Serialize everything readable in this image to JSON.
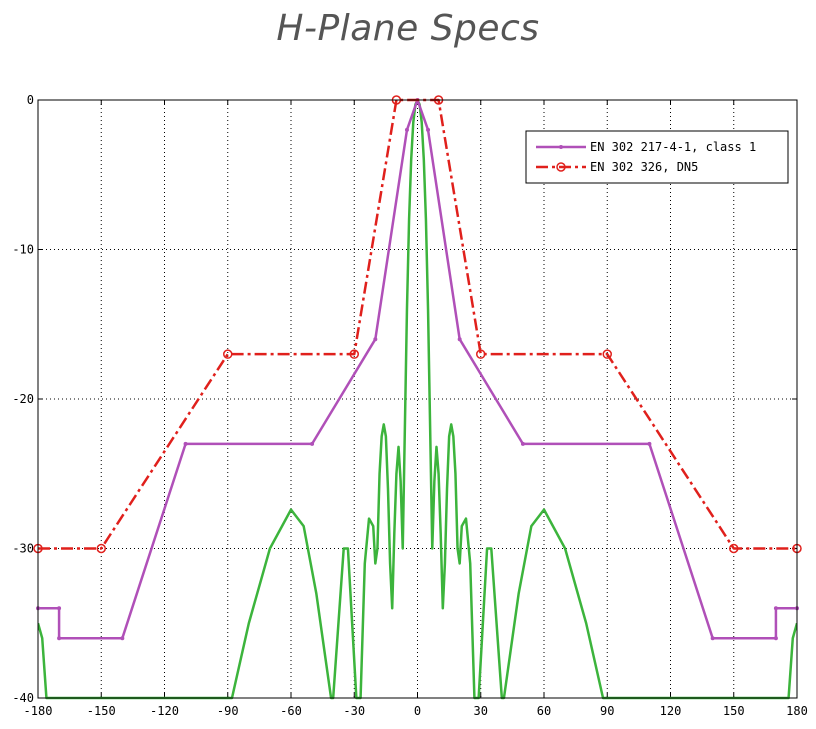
{
  "title": "H-Plane Specs",
  "chart_data": {
    "type": "line",
    "title": "H-Plane Specs",
    "xlabel": "",
    "ylabel": "",
    "xlim": [
      -180,
      180
    ],
    "ylim": [
      -40,
      0
    ],
    "xticks": [
      -180,
      -150,
      -120,
      -90,
      -60,
      -30,
      0,
      30,
      60,
      90,
      120,
      150,
      180
    ],
    "yticks": [
      0,
      -10,
      -20,
      -30,
      -40
    ],
    "grid": true,
    "legend_position": "top-right",
    "series": [
      {
        "name": "EN 302 217-4-1, class 1",
        "color": "#b050b8",
        "style": "solid",
        "marker": "dot",
        "points": [
          [
            -180,
            -34
          ],
          [
            -170,
            -34
          ],
          [
            -170,
            -36
          ],
          [
            -140,
            -36
          ],
          [
            -110,
            -23
          ],
          [
            -50,
            -23
          ],
          [
            -20,
            -16
          ],
          [
            -5,
            -2
          ],
          [
            0,
            0
          ],
          [
            5,
            -2
          ],
          [
            20,
            -16
          ],
          [
            50,
            -23
          ],
          [
            110,
            -23
          ],
          [
            140,
            -36
          ],
          [
            170,
            -36
          ],
          [
            170,
            -34
          ],
          [
            180,
            -34
          ]
        ]
      },
      {
        "name": "EN 302 326, DN5",
        "color": "#e0201c",
        "style": "dashdot",
        "marker": "circle",
        "points": [
          [
            -180,
            -30
          ],
          [
            -150,
            -30
          ],
          [
            -90,
            -17
          ],
          [
            -30,
            -17
          ],
          [
            -10,
            0
          ],
          [
            10,
            0
          ],
          [
            30,
            -17
          ],
          [
            90,
            -17
          ],
          [
            150,
            -30
          ],
          [
            180,
            -30
          ]
        ]
      },
      {
        "name": "",
        "color": "#3cb43c",
        "style": "solid",
        "marker": "none",
        "points": [
          [
            -180,
            -35
          ],
          [
            -178,
            -36
          ],
          [
            -176,
            -40
          ],
          [
            -160,
            -40
          ],
          [
            -88,
            -40
          ],
          [
            -80,
            -35
          ],
          [
            -70,
            -30
          ],
          [
            -60,
            -27.4
          ],
          [
            -54,
            -28.5
          ],
          [
            -48,
            -33
          ],
          [
            -44,
            -37
          ],
          [
            -41,
            -40
          ],
          [
            -40,
            -40
          ],
          [
            -37,
            -34
          ],
          [
            -35,
            -30
          ],
          [
            -33,
            -30
          ],
          [
            -31,
            -35
          ],
          [
            -29,
            -40
          ],
          [
            -27,
            -40
          ],
          [
            -25,
            -31
          ],
          [
            -23,
            -28
          ],
          [
            -21,
            -28.5
          ],
          [
            -20,
            -31
          ],
          [
            -19,
            -30
          ],
          [
            -18,
            -25
          ],
          [
            -17,
            -22.5
          ],
          [
            -16,
            -21.7
          ],
          [
            -15,
            -22.5
          ],
          [
            -14,
            -26
          ],
          [
            -13,
            -31
          ],
          [
            -12,
            -34
          ],
          [
            -11,
            -29
          ],
          [
            -10,
            -25
          ],
          [
            -9,
            -23.2
          ],
          [
            -8,
            -25.5
          ],
          [
            -7,
            -30
          ],
          [
            -6,
            -22
          ],
          [
            -5,
            -14
          ],
          [
            -4,
            -8
          ],
          [
            -3,
            -4
          ],
          [
            -2,
            -1.5
          ],
          [
            -1,
            -0.3
          ],
          [
            0,
            0
          ],
          [
            1,
            -0.3
          ],
          [
            2,
            -1.5
          ],
          [
            3,
            -4
          ],
          [
            4,
            -8
          ],
          [
            5,
            -14
          ],
          [
            6,
            -22
          ],
          [
            7,
            -30
          ],
          [
            8,
            -25.5
          ],
          [
            9,
            -23.2
          ],
          [
            10,
            -25
          ],
          [
            11,
            -29
          ],
          [
            12,
            -34
          ],
          [
            13,
            -31
          ],
          [
            14,
            -26
          ],
          [
            15,
            -22.5
          ],
          [
            16,
            -21.7
          ],
          [
            17,
            -22.5
          ],
          [
            18,
            -25
          ],
          [
            19,
            -30
          ],
          [
            20,
            -31
          ],
          [
            21,
            -28.5
          ],
          [
            23,
            -28
          ],
          [
            25,
            -31
          ],
          [
            27,
            -40
          ],
          [
            29,
            -40
          ],
          [
            31,
            -35
          ],
          [
            33,
            -30
          ],
          [
            35,
            -30
          ],
          [
            37,
            -34
          ],
          [
            40,
            -40
          ],
          [
            41,
            -40
          ],
          [
            44,
            -37
          ],
          [
            48,
            -33
          ],
          [
            54,
            -28.5
          ],
          [
            60,
            -27.4
          ],
          [
            70,
            -30
          ],
          [
            80,
            -35
          ],
          [
            88,
            -40
          ],
          [
            160,
            -40
          ],
          [
            176,
            -40
          ],
          [
            178,
            -36
          ],
          [
            180,
            -35
          ]
        ]
      }
    ]
  }
}
